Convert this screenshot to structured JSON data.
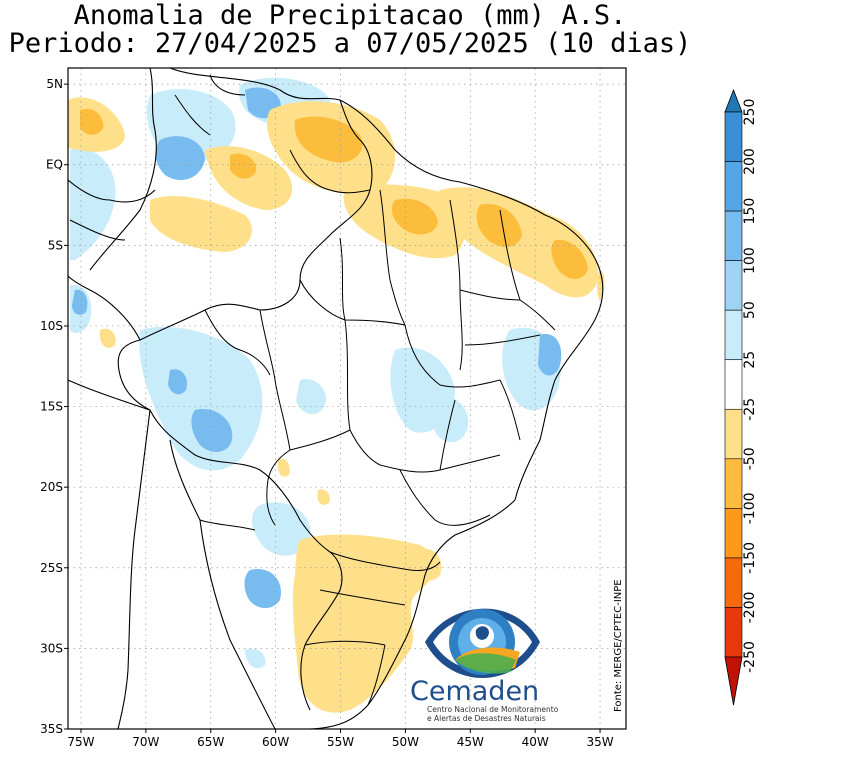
{
  "title": {
    "line1": "Anomalia de Precipitacao (mm) A.S.",
    "line2": "Periodo: 27/04/2025 a 07/05/2025 (10 dias)"
  },
  "map": {
    "lon_range": [
      -76,
      -33
    ],
    "lat_range": [
      -35,
      6
    ],
    "lon_ticks": [
      {
        "value": -75,
        "label": "75W"
      },
      {
        "value": -70,
        "label": "70W"
      },
      {
        "value": -65,
        "label": "65W"
      },
      {
        "value": -60,
        "label": "60W"
      },
      {
        "value": -55,
        "label": "55W"
      },
      {
        "value": -50,
        "label": "50W"
      },
      {
        "value": -45,
        "label": "45W"
      },
      {
        "value": -40,
        "label": "40W"
      },
      {
        "value": -35,
        "label": "35W"
      }
    ],
    "lat_ticks": [
      {
        "value": 5,
        "label": "5N"
      },
      {
        "value": 0,
        "label": "EQ"
      },
      {
        "value": -5,
        "label": "5S"
      },
      {
        "value": -10,
        "label": "10S"
      },
      {
        "value": -15,
        "label": "15S"
      },
      {
        "value": -20,
        "label": "20S"
      },
      {
        "value": -25,
        "label": "25S"
      },
      {
        "value": -30,
        "label": "30S"
      },
      {
        "value": -35,
        "label": "35S"
      }
    ],
    "grid": true,
    "source_label": "Fonte: MERGE/CPTEC-INPE"
  },
  "colorbar": {
    "labels": [
      "250",
      "200",
      "150",
      "100",
      "50",
      "25",
      "-25",
      "-50",
      "-100",
      "-150",
      "-200",
      "-250"
    ],
    "colors": [
      "#1f78b4",
      "#3a8fd6",
      "#56a5e6",
      "#78bbef",
      "#9ed3f6",
      "#c9ecfb",
      "#ffffff",
      "#ffe08a",
      "#fdbd3c",
      "#fd9a1a",
      "#f76a0c",
      "#e8370a",
      "#c01206"
    ]
  },
  "logo": {
    "name": "Cemaden",
    "subtitle_line1": "Centro Nacional de Monitoramento",
    "subtitle_line2": "e Alertas de Desastres Naturais"
  }
}
